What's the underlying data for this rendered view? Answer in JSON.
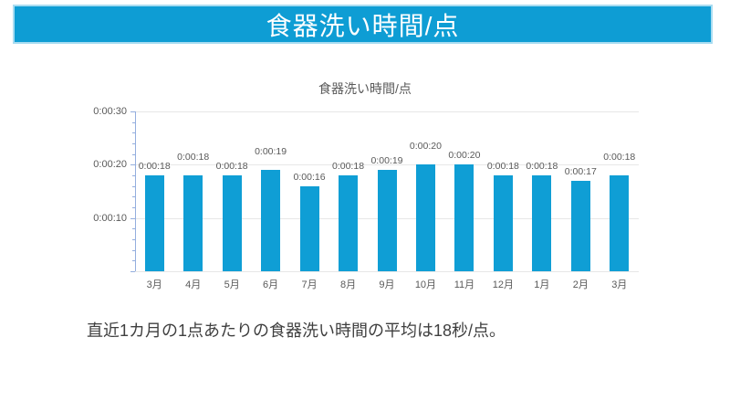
{
  "banner": {
    "title": "食器洗い時間/点",
    "bg_color": "#0e9dd4",
    "border_color": "#a8dcf1",
    "text_color": "#ffffff"
  },
  "chart_data": {
    "type": "bar",
    "title": "食器洗い時間/点",
    "categories": [
      "3月",
      "4月",
      "5月",
      "6月",
      "7月",
      "8月",
      "9月",
      "10月",
      "11月",
      "12月",
      "1月",
      "2月",
      "3月"
    ],
    "values_seconds": [
      18,
      18,
      18,
      19,
      16,
      18,
      19,
      20,
      20,
      18,
      18,
      17,
      18
    ],
    "data_labels": [
      "0:00:18",
      "0:00:18",
      "0:00:18",
      "0:00:19",
      "0:00:16",
      "0:00:18",
      "0:00:19",
      "0:00:20",
      "0:00:20",
      "0:00:18",
      "0:00:18",
      "0:00:17",
      "0:00:18"
    ],
    "raised_label_indices": [
      1,
      3,
      7,
      12
    ],
    "xlabel": "",
    "ylabel": "",
    "ylim": [
      0,
      30
    ],
    "ytick_values": [
      30,
      20,
      10
    ],
    "ytick_labels": [
      "0:00:30",
      "0:00:20",
      "0:00:10"
    ],
    "minor_tick_step_seconds": 2,
    "grid": true,
    "legend": false,
    "bar_color": "#0f9ed5",
    "axis_color": "#94aede",
    "gridline_color": "#e7e7e7",
    "text_color": "#595959"
  },
  "footer": {
    "note": "直近1カ月の1点あたりの食器洗い時間の平均は18秒/点。"
  }
}
